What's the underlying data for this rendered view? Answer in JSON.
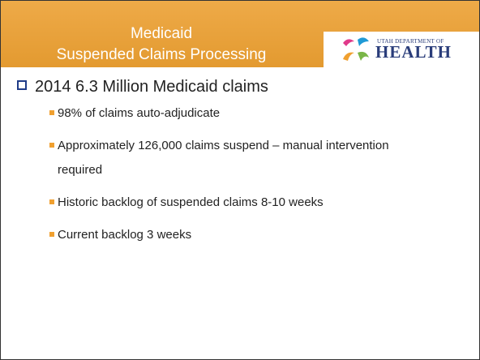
{
  "header": {
    "title_lines": [
      "Medicaid",
      "Suspended Claims Processing"
    ],
    "logo": {
      "small": "UTAH DEPARTMENT OF",
      "big": "HEALTH"
    }
  },
  "bullets": [
    {
      "text": "2014 6.3 Million Medicaid claims",
      "items": [
        "98% of claims auto-adjudicate",
        "Approximately 126,000 claims suspend – manual intervention required",
        "Historic backlog of suspended claims 8-10 weeks",
        "Current backlog 3 weeks"
      ]
    }
  ]
}
